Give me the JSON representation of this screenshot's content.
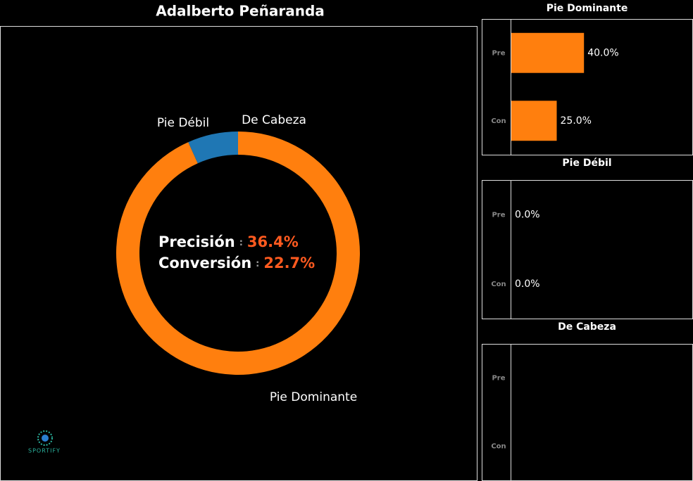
{
  "brand": "SPORTIFY",
  "chart_data": [
    {
      "type": "donut",
      "title": "Adalberto Peñaranda",
      "categories": [
        "Pie Dominante",
        "Pie Débil",
        "De Cabeza"
      ],
      "values": [
        93.3,
        6.7,
        0
      ],
      "colors": [
        "#ff7f0e",
        "#1f77b4",
        "#2ca02c"
      ],
      "annotations": [
        {
          "label": "Precisión",
          "separator": ":",
          "value": "36.4%"
        },
        {
          "label": "Conversión",
          "separator": ":",
          "value": "22.7%"
        }
      ]
    },
    {
      "type": "hbar",
      "title": "Pie Dominante",
      "categories": [
        "Pre",
        "Con"
      ],
      "values": [
        40,
        25
      ],
      "value_labels": [
        "40.0%",
        "25.0%"
      ],
      "color": "#ff7f0e",
      "xlim": [
        0,
        100
      ]
    },
    {
      "type": "hbar",
      "title": "Pie Débil",
      "categories": [
        "Pre",
        "Con"
      ],
      "values": [
        0,
        0
      ],
      "value_labels": [
        "0.0%",
        "0.0%"
      ],
      "color": "#ff7f0e",
      "xlim": [
        0,
        100
      ]
    },
    {
      "type": "hbar",
      "title": "De Cabeza",
      "categories": [
        "Pre",
        "Con"
      ],
      "values": [
        null,
        null
      ],
      "color": "#ff7f0e",
      "xlim": [
        0,
        100
      ]
    }
  ]
}
